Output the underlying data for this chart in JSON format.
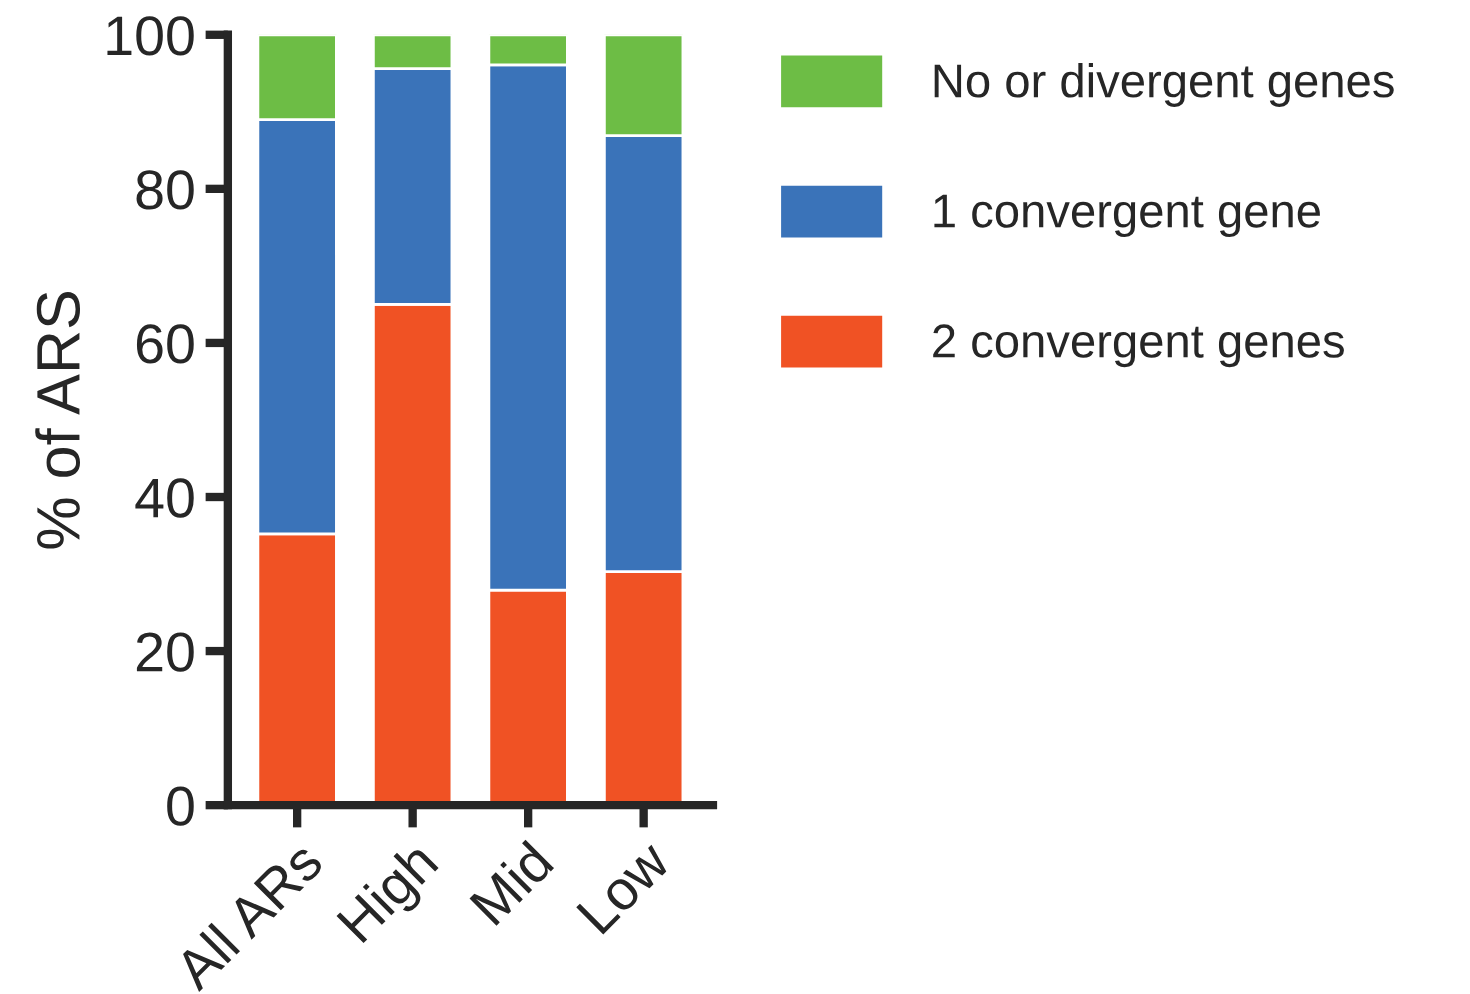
{
  "chart_data": {
    "type": "bar",
    "stacked": true,
    "ylabel": "% of ARS",
    "categories": [
      "All ARs",
      "High",
      "Mid",
      "Low"
    ],
    "series": [
      {
        "name": "2 convergent genes",
        "color": "#f05224",
        "values": [
          35.2,
          65.0,
          27.9,
          30.3
        ]
      },
      {
        "name": "1 convergent gene",
        "color": "#3a73b9",
        "values": [
          53.8,
          30.6,
          68.2,
          56.6
        ]
      },
      {
        "name": "No or divergent genes",
        "color": "#6dbd45",
        "values": [
          11.0,
          4.4,
          3.9,
          13.1
        ]
      }
    ],
    "ylim": [
      0,
      100
    ],
    "yticks": [
      0,
      20,
      40,
      60,
      80,
      100
    ],
    "grid": false,
    "legend": "right"
  }
}
